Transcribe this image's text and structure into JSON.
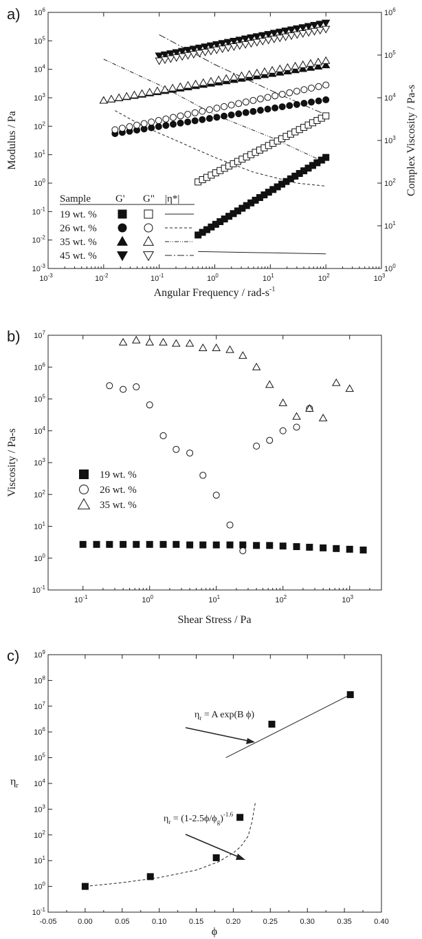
{
  "chart_data": [
    {
      "type": "scatter",
      "panel_label": "a)",
      "xlabel": "Angular Frequency / rad-s",
      "xlabel_sup": "-1",
      "ylabel": "Modulus / Pa",
      "y2label": "Complex Viscosity / Pa-s",
      "xscale": "log",
      "yscale": "log",
      "y2scale": "log",
      "xlim": [
        0.001,
        1000
      ],
      "ylim": [
        0.001,
        1000000
      ],
      "y2lim": [
        1,
        1000000
      ],
      "xticks": [
        0.001,
        0.01,
        0.1,
        1,
        10,
        100,
        1000
      ],
      "xticklabels": [
        "10",
        "10",
        "10",
        "10",
        "10",
        "10",
        "10"
      ],
      "xtick_exps": [
        "-3",
        "-2",
        "-1",
        "0",
        "1",
        "2",
        "3"
      ],
      "yticks": [
        0.001,
        0.01,
        0.1,
        1,
        10,
        100,
        1000,
        10000,
        100000,
        1000000
      ],
      "yticklabels": [
        "10",
        "10",
        "10",
        "10",
        "10",
        "10",
        "10",
        "10",
        "10",
        "10"
      ],
      "ytick_exps": [
        "-3",
        "-2",
        "-1",
        "0",
        "1",
        "2",
        "3",
        "4",
        "5",
        "6"
      ],
      "y2ticks": [
        1,
        10,
        100,
        1000,
        10000,
        100000,
        1000000
      ],
      "y2ticklabels": [
        "10",
        "10",
        "10",
        "10",
        "10",
        "10",
        "10"
      ],
      "y2tick_exps": [
        "0",
        "1",
        "2",
        "3",
        "4",
        "5",
        "6"
      ],
      "legend": {
        "placement": "lower-left",
        "header": [
          "Sample",
          "G'",
          "G\"",
          "|η*|"
        ],
        "rows": [
          "19 wt. %",
          "26 wt. %",
          "35 wt. %",
          "45 wt. %"
        ]
      },
      "series": [
        {
          "sample": "19 wt. %",
          "quantity": "G'",
          "marker": "filled-square",
          "x_range": [
            0.5,
            100
          ],
          "y_range": [
            0.015,
            8
          ]
        },
        {
          "sample": "19 wt. %",
          "quantity": "G\"",
          "marker": "open-square",
          "x_range": [
            0.5,
            100
          ],
          "y_range": [
            1.1,
            230
          ]
        },
        {
          "sample": "19 wt. %",
          "quantity": "|η*|",
          "line": "solid",
          "axis": "right",
          "x": [
            0.5,
            100
          ],
          "y": [
            2.5,
            2.2
          ]
        },
        {
          "sample": "26 wt. %",
          "quantity": "G'",
          "marker": "filled-circle",
          "x_range": [
            0.016,
            100
          ],
          "y_range": [
            55,
            850
          ]
        },
        {
          "sample": "26 wt. %",
          "quantity": "G\"",
          "marker": "open-circle",
          "x_range": [
            0.016,
            100
          ],
          "y_range": [
            75,
            2800
          ]
        },
        {
          "sample": "26 wt. %",
          "quantity": "|η*|",
          "line": "dashed",
          "axis": "right",
          "x": [
            0.016,
            0.05,
            0.2,
            1,
            5,
            30,
            100
          ],
          "y": [
            5000,
            2200,
            1000,
            400,
            180,
            100,
            85
          ]
        },
        {
          "sample": "35 wt. %",
          "quantity": "G'",
          "marker": "filled-triangle-up",
          "x_range": [
            0.01,
            100
          ],
          "y_range": [
            800,
            14000
          ]
        },
        {
          "sample": "35 wt. %",
          "quantity": "G\"",
          "marker": "open-triangle-up",
          "x_range": [
            0.01,
            100
          ],
          "y_range": [
            800,
            20000
          ]
        },
        {
          "sample": "35 wt. %",
          "quantity": "|η*|",
          "line": "dash-dot-dot",
          "axis": "right",
          "x": [
            0.01,
            0.1,
            1,
            10,
            100
          ],
          "y": [
            80000,
            20000,
            4000,
            1200,
            300
          ]
        },
        {
          "sample": "45 wt. %",
          "quantity": "G'",
          "marker": "filled-triangle-down",
          "x_range": [
            0.1,
            100
          ],
          "y_range": [
            30000,
            430000
          ]
        },
        {
          "sample": "45 wt. %",
          "quantity": "G\"",
          "marker": "open-triangle-down",
          "x_range": [
            0.1,
            100
          ],
          "y_range": [
            20000,
            260000
          ]
        },
        {
          "sample": "45 wt. %",
          "quantity": "|η*|",
          "line": "dash-dot",
          "axis": "right",
          "x": [
            0.1,
            1,
            10,
            100
          ],
          "y": [
            300000,
            60000,
            15000,
            4000
          ]
        }
      ]
    },
    {
      "type": "scatter",
      "panel_label": "b)",
      "xlabel": "Shear Stress / Pa",
      "ylabel": "Viscosity / Pa-s",
      "xscale": "log",
      "yscale": "log",
      "xlim": [
        0.03,
        3000
      ],
      "ylim": [
        0.1,
        10000000
      ],
      "xticks": [
        0.1,
        1,
        10,
        100,
        1000
      ],
      "xticklabels": [
        "10",
        "10",
        "10",
        "10",
        "10"
      ],
      "xtick_exps": [
        "-1",
        "0",
        "1",
        "2",
        "3"
      ],
      "yticks": [
        0.1,
        1,
        10,
        100,
        1000,
        10000,
        100000,
        1000000,
        10000000
      ],
      "yticklabels": [
        "10",
        "10",
        "10",
        "10",
        "10",
        "10",
        "10",
        "10",
        "10"
      ],
      "ytick_exps": [
        "-1",
        "0",
        "1",
        "2",
        "3",
        "4",
        "5",
        "6",
        "7"
      ],
      "legend": {
        "placement": "middle-left"
      },
      "series": [
        {
          "name": "19 wt. %",
          "marker": "filled-square",
          "x": [
            0.1,
            0.16,
            0.25,
            0.4,
            0.63,
            1,
            1.6,
            2.5,
            4,
            6.3,
            10,
            16,
            25,
            40,
            63,
            100,
            160,
            250,
            400,
            630,
            1000,
            1600
          ],
          "y": [
            2.7,
            2.7,
            2.7,
            2.7,
            2.7,
            2.7,
            2.7,
            2.7,
            2.6,
            2.6,
            2.6,
            2.6,
            2.6,
            2.5,
            2.5,
            2.4,
            2.3,
            2.2,
            2.1,
            2.0,
            1.9,
            1.8
          ]
        },
        {
          "name": "26 wt. %",
          "marker": "open-circle",
          "x": [
            0.25,
            0.4,
            0.63,
            1,
            1.6,
            2.5,
            4,
            6.3,
            10,
            16,
            25,
            40,
            63,
            100,
            160,
            250
          ],
          "y": [
            260000,
            200000,
            240000,
            65000,
            7000,
            2600,
            2000,
            400,
            95,
            11,
            1.7,
            3300,
            5000,
            10000,
            13000,
            50000
          ]
        },
        {
          "name": "35 wt. %",
          "marker": "open-triangle-up",
          "x": [
            0.4,
            0.63,
            1,
            1.6,
            2.5,
            4,
            6.3,
            10,
            16,
            25,
            40,
            63,
            100,
            160,
            250,
            400,
            630,
            1000
          ],
          "y": [
            6000000,
            7000000,
            6000000,
            6000000,
            5500000,
            5500000,
            4000000,
            4000000,
            3500000,
            2300000,
            1000000,
            280000,
            75000,
            28000,
            50000,
            25000,
            320000,
            210000
          ]
        }
      ]
    },
    {
      "type": "scatter",
      "panel_label": "c)",
      "xlabel": "ϕ",
      "ylabel": "η",
      "ylabel_sub": "r",
      "xscale": "linear",
      "yscale": "log",
      "xlim": [
        -0.05,
        0.4
      ],
      "ylim": [
        0.1,
        1000000000
      ],
      "xticks": [
        -0.05,
        0,
        0.05,
        0.1,
        0.15,
        0.2,
        0.25,
        0.3,
        0.35,
        0.4
      ],
      "xticklabels": [
        "-0.05",
        "0.00",
        "0.05",
        "0.10",
        "0.15",
        "0.20",
        "0.25",
        "0.30",
        "0.35",
        "0.40"
      ],
      "yticks": [
        0.1,
        1,
        10,
        100,
        1000,
        10000,
        100000,
        1000000,
        10000000,
        100000000,
        1000000000
      ],
      "yticklabels": [
        "10",
        "10",
        "10",
        "10",
        "10",
        "10",
        "10",
        "10",
        "10",
        "10",
        "10"
      ],
      "ytick_exps": [
        "-1",
        "0",
        "1",
        "2",
        "3",
        "4",
        "5",
        "6",
        "7",
        "8",
        "9"
      ],
      "series": [
        {
          "marker": "filled-square",
          "x": [
            0.0,
            0.088,
            0.177,
            0.209,
            0.252,
            0.358
          ],
          "y": [
            1.0,
            2.4,
            13,
            480,
            2000000,
            28000000
          ]
        },
        {
          "line": "solid",
          "x": [
            0.19,
            0.36
          ],
          "y": [
            100000,
            30000000
          ]
        },
        {
          "line": "dashed",
          "x": [
            0.0,
            0.05,
            0.1,
            0.15,
            0.18,
            0.2,
            0.21,
            0.22,
            0.225,
            0.23
          ],
          "y": [
            1.0,
            1.4,
            2.2,
            4.3,
            9,
            20,
            35,
            90,
            300,
            2000
          ]
        }
      ],
      "annotations": [
        {
          "prefix": "η",
          "sub": "r",
          "text": " = A exp(B ϕ)"
        },
        {
          "prefix": "η",
          "sub": "r",
          "mid": " = (1-2.5ϕ/ϕ",
          "sub2": "g",
          "close": ")",
          "sup": "-1.6"
        }
      ]
    }
  ]
}
